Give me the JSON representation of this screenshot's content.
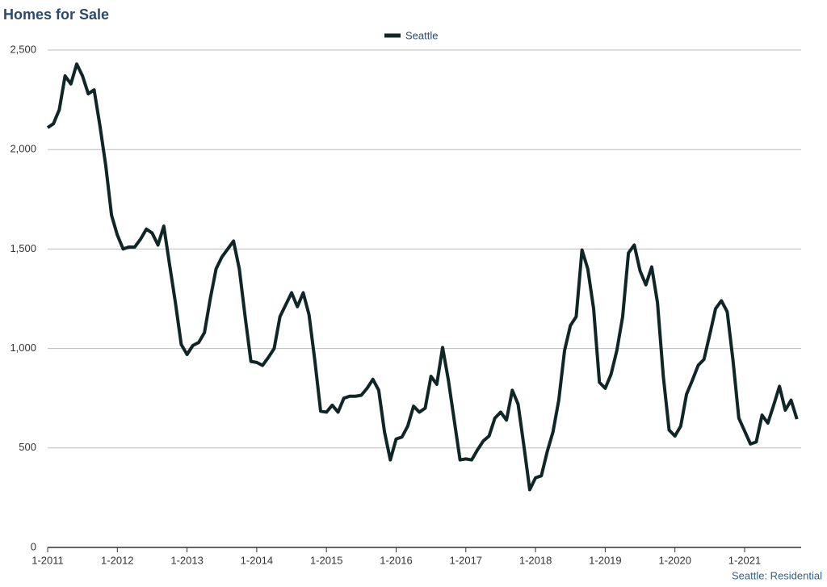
{
  "chart_data": {
    "type": "line",
    "title": "Homes for Sale",
    "footer": "Seattle: Residential",
    "categories": [
      "1-2011",
      null,
      null,
      null,
      null,
      null,
      null,
      null,
      null,
      null,
      null,
      null,
      "1-2012",
      null,
      null,
      null,
      null,
      null,
      null,
      null,
      null,
      null,
      null,
      null,
      "1-2013",
      null,
      null,
      null,
      null,
      null,
      null,
      null,
      null,
      null,
      null,
      null,
      "1-2014",
      null,
      null,
      null,
      null,
      null,
      null,
      null,
      null,
      null,
      null,
      null,
      "1-2015",
      null,
      null,
      null,
      null,
      null,
      null,
      null,
      null,
      null,
      null,
      null,
      "1-2016",
      null,
      null,
      null,
      null,
      null,
      null,
      null,
      null,
      null,
      null,
      null,
      "1-2017",
      null,
      null,
      null,
      null,
      null,
      null,
      null,
      null,
      null,
      null,
      null,
      "1-2018",
      null,
      null,
      null,
      null,
      null,
      null,
      null,
      null,
      null,
      null,
      null,
      "1-2019",
      null,
      null,
      null,
      null,
      null,
      null,
      null,
      null,
      null,
      null,
      null,
      "1-2020",
      null,
      null,
      null,
      null,
      null,
      null,
      null,
      null,
      null,
      null,
      null,
      "1-2021",
      null,
      null,
      null,
      null,
      null,
      null,
      null,
      null,
      null
    ],
    "series": [
      {
        "name": "Seattle",
        "color": "#0e2626",
        "values": [
          2110,
          2130,
          2200,
          2370,
          2330,
          2430,
          2370,
          2280,
          2300,
          2120,
          1920,
          1670,
          1570,
          1500,
          1510,
          1510,
          1550,
          1600,
          1580,
          1520,
          1615,
          1420,
          1230,
          1020,
          970,
          1015,
          1030,
          1080,
          1250,
          1400,
          1460,
          1500,
          1540,
          1400,
          1160,
          935,
          930,
          915,
          955,
          1000,
          1160,
          1220,
          1280,
          1210,
          1280,
          1170,
          940,
          685,
          680,
          715,
          680,
          750,
          760,
          760,
          765,
          800,
          845,
          790,
          580,
          440,
          545,
          555,
          610,
          710,
          680,
          700,
          860,
          820,
          1005,
          840,
          640,
          440,
          445,
          440,
          490,
          535,
          560,
          650,
          680,
          640,
          790,
          720,
          510,
          290,
          350,
          360,
          480,
          580,
          740,
          990,
          1115,
          1160,
          1495,
          1400,
          1200,
          830,
          800,
          870,
          990,
          1160,
          1480,
          1520,
          1390,
          1320,
          1410,
          1230,
          860,
          590,
          560,
          610,
          770,
          840,
          915,
          945,
          1070,
          1200,
          1240,
          1185,
          940,
          650,
          585,
          520,
          530,
          665,
          625,
          715,
          810,
          690,
          740,
          645
        ]
      }
    ],
    "ylim": [
      0,
      2500
    ],
    "yticks": [
      0,
      500,
      {
        "value": 1000,
        "label": "1,000"
      },
      {
        "value": 1500,
        "label": "1,500"
      },
      {
        "value": 2000,
        "label": "2,000"
      },
      {
        "value": 2500,
        "label": "2,500"
      }
    ],
    "grid": true
  }
}
